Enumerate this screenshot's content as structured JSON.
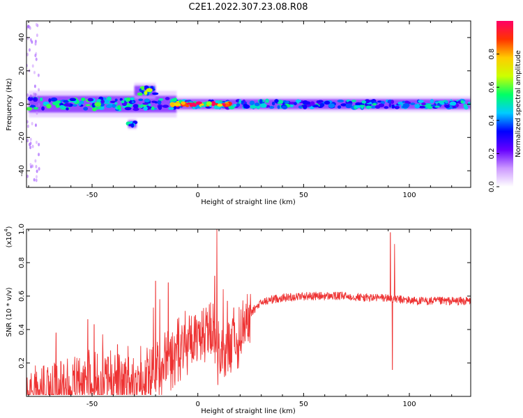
{
  "figure_title": "C2E1.2022.307.23.08.R08",
  "chart_data": [
    {
      "type": "heatmap",
      "xlabel": "Height of straight line (km)",
      "ylabel": "Frequency (Hz)",
      "xlim": [
        -81,
        129
      ],
      "ylim": [
        -50,
        50
      ],
      "x_ticks": [
        -50,
        0,
        50,
        100
      ],
      "y_ticks": [
        -40,
        -20,
        0,
        20,
        40
      ],
      "colorbar": {
        "label": "Normalized spectral amplitude",
        "range": [
          0.0,
          1.0
        ],
        "ticks": [
          0.0,
          0.2,
          0.4,
          0.6,
          0.8
        ],
        "colormap": [
          "#ffffff",
          "#cc99ff",
          "#6600ff",
          "#0000ff",
          "#00ccff",
          "#00ff66",
          "#ccff00",
          "#ffcc00",
          "#ff3300",
          "#ff0066"
        ]
      },
      "features": [
        {
          "x": [
            -80,
            -10
          ],
          "freq_center": 0,
          "freq_halfwidth": 5,
          "amplitude": 0.5
        },
        {
          "x": [
            -10,
            129
          ],
          "freq_center": 0,
          "freq_halfwidth": 3,
          "amplitude": 0.45
        },
        {
          "x": [
            -30,
            -20
          ],
          "freq_center": 8,
          "freq_halfwidth": 3,
          "amplitude": 0.6
        },
        {
          "x": [
            -33,
            -29
          ],
          "freq_center": -12,
          "freq_halfwidth": 2,
          "amplitude": 0.5
        },
        {
          "x": [
            -12,
            15
          ],
          "freq_center": 0,
          "freq_halfwidth": 1,
          "amplitude": 0.9
        }
      ]
    },
    {
      "type": "line",
      "xlabel": "Height of straight line (km)",
      "ylabel": "SNR (10 * v/v)",
      "y_multiplier": "(x10",
      "y_multiplier_exp": "4",
      "xlim": [
        -81,
        129
      ],
      "ylim": [
        0.0,
        1.0
      ],
      "x_ticks": [
        -50,
        0,
        50,
        100
      ],
      "y_ticks": [
        0.2,
        0.4,
        0.6,
        0.8,
        1.0
      ],
      "series": [
        {
          "color": "#ee3333",
          "baseline": [
            [
              -81,
              0.02
            ],
            [
              -70,
              0.06
            ],
            [
              -60,
              0.1
            ],
            [
              -50,
              0.13
            ],
            [
              -40,
              0.12
            ],
            [
              -30,
              0.1
            ],
            [
              -25,
              0.12
            ],
            [
              -20,
              0.18
            ],
            [
              -15,
              0.25
            ],
            [
              -10,
              0.3
            ],
            [
              -5,
              0.34
            ],
            [
              0,
              0.38
            ],
            [
              5,
              0.4
            ],
            [
              8,
              0.42
            ],
            [
              10,
              0.3
            ],
            [
              12,
              0.25
            ],
            [
              15,
              0.3
            ],
            [
              20,
              0.4
            ],
            [
              25,
              0.5
            ],
            [
              30,
              0.56
            ],
            [
              35,
              0.58
            ],
            [
              40,
              0.59
            ],
            [
              50,
              0.6
            ],
            [
              60,
              0.6
            ],
            [
              70,
              0.6
            ],
            [
              80,
              0.59
            ],
            [
              88,
              0.59
            ],
            [
              95,
              0.58
            ],
            [
              105,
              0.57
            ],
            [
              115,
              0.57
            ],
            [
              129,
              0.57
            ]
          ],
          "spikes": [
            [
              -67,
              0.38
            ],
            [
              -52,
              0.46
            ],
            [
              -49,
              0.43
            ],
            [
              -45,
              0.37
            ],
            [
              -38,
              0.31
            ],
            [
              -33,
              0.3
            ],
            [
              -27,
              0.3
            ],
            [
              -21,
              0.53
            ],
            [
              -20,
              0.69
            ],
            [
              -18,
              0.58
            ],
            [
              -14,
              0.68
            ],
            [
              -9,
              0.47
            ],
            [
              -6,
              0.51
            ],
            [
              -3,
              0.48
            ],
            [
              2,
              0.51
            ],
            [
              6,
              0.56
            ],
            [
              8,
              0.72
            ],
            [
              9,
              1.0
            ],
            [
              9.5,
              0.07
            ],
            [
              12,
              0.64
            ],
            [
              14,
              0.57
            ],
            [
              17,
              0.53
            ],
            [
              91,
              0.98
            ],
            [
              92,
              0.16
            ],
            [
              93,
              0.91
            ]
          ]
        }
      ]
    }
  ]
}
